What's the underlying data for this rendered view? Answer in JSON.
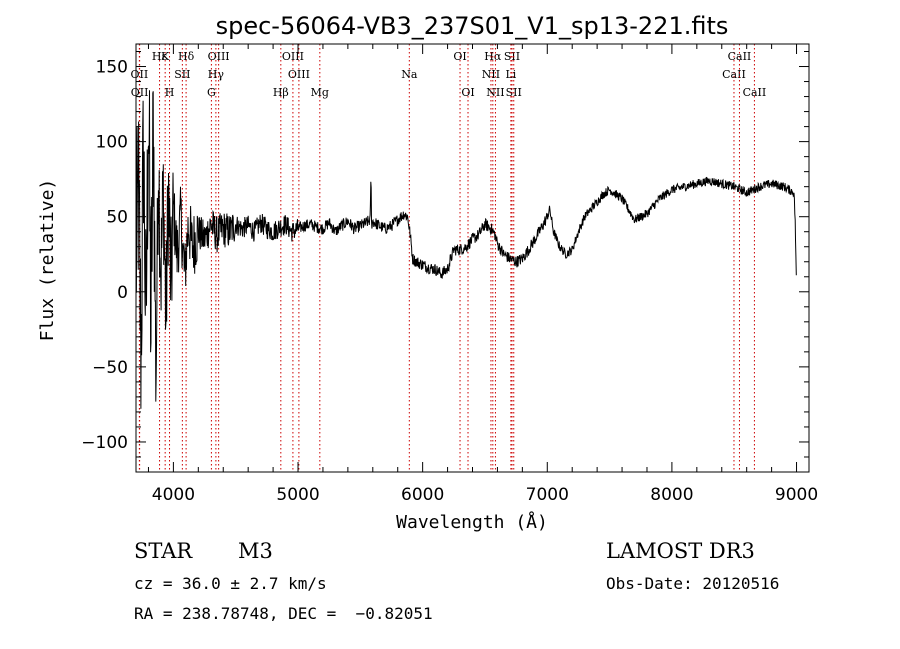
{
  "chart_data": {
    "type": "line",
    "title": "spec-56064-VB3_237S01_V1_sp13-221.fits",
    "xlabel": "Wavelength (Å)",
    "ylabel": "Flux (relative)",
    "xlim": [
      3700,
      9100
    ],
    "ylim": [
      -120,
      165
    ],
    "xticks": [
      4000,
      5000,
      6000,
      7000,
      8000,
      9000
    ],
    "yticks": [
      -100,
      -50,
      0,
      50,
      100,
      150
    ],
    "xtick_labels": [
      "4000",
      "5000",
      "6000",
      "7000",
      "8000",
      "9000"
    ],
    "ytick_labels": [
      "−100",
      "−50",
      "0",
      "50",
      "100",
      "150"
    ],
    "series": [
      {
        "name": "flux",
        "x": [
          3700,
          3720,
          3740,
          3760,
          3780,
          3800,
          3820,
          3840,
          3860,
          3880,
          3900,
          3920,
          3940,
          3960,
          3980,
          4000,
          4030,
          4060,
          4090,
          4120,
          4150,
          4200,
          4250,
          4300,
          4350,
          4400,
          4450,
          4500,
          4550,
          4600,
          4650,
          4700,
          4750,
          4800,
          4850,
          4900,
          4950,
          5000,
          5050,
          5100,
          5150,
          5200,
          5250,
          5300,
          5350,
          5400,
          5450,
          5500,
          5550,
          5580,
          5585,
          5590,
          5600,
          5650,
          5700,
          5750,
          5800,
          5850,
          5880,
          5900,
          5920,
          5950,
          6000,
          6050,
          6100,
          6150,
          6200,
          6250,
          6300,
          6350,
          6400,
          6450,
          6500,
          6550,
          6580,
          6600,
          6650,
          6700,
          6750,
          6800,
          6850,
          6900,
          6950,
          7000,
          7020,
          7050,
          7100,
          7150,
          7200,
          7250,
          7300,
          7350,
          7400,
          7450,
          7500,
          7550,
          7600,
          7650,
          7700,
          7750,
          7800,
          7900,
          8000,
          8100,
          8200,
          8300,
          8400,
          8500,
          8600,
          8700,
          8800,
          8900,
          8980,
          8990,
          9000
        ],
        "values": [
          20,
          65,
          -40,
          100,
          -30,
          130,
          -25,
          120,
          -60,
          90,
          10,
          70,
          -20,
          70,
          0,
          55,
          25,
          50,
          10,
          45,
          30,
          40,
          35,
          45,
          38,
          42,
          40,
          45,
          42,
          44,
          40,
          46,
          42,
          40,
          43,
          45,
          40,
          42,
          44,
          45,
          43,
          42,
          46,
          40,
          44,
          47,
          42,
          44,
          46,
          48,
          82,
          45,
          47,
          44,
          42,
          44,
          48,
          52,
          50,
          38,
          22,
          20,
          18,
          16,
          15,
          12,
          15,
          28,
          28,
          30,
          35,
          38,
          45,
          42,
          38,
          32,
          25,
          22,
          20,
          22,
          28,
          35,
          42,
          50,
          55,
          40,
          30,
          25,
          28,
          40,
          50,
          55,
          60,
          65,
          68,
          65,
          62,
          55,
          48,
          50,
          52,
          62,
          68,
          70,
          72,
          74,
          72,
          70,
          66,
          70,
          72,
          70,
          66,
          45,
          0
        ]
      }
    ],
    "emission_lines": [
      {
        "label": "Hδ",
        "x": 4102,
        "row": 1
      },
      {
        "label": "Hγ",
        "x": 4341,
        "row": 2
      },
      {
        "label": "Hβ",
        "x": 4862,
        "row": 3
      },
      {
        "label": "OIII",
        "x": 4363,
        "row": 1
      },
      {
        "label": "OIII",
        "x": 4959,
        "row": 1
      },
      {
        "label": "OIII",
        "x": 5007,
        "row": 2
      },
      {
        "label": "G",
        "x": 4305,
        "row": 3
      },
      {
        "label": "Mg",
        "x": 5175,
        "row": 3
      },
      {
        "label": "Na",
        "x": 5893,
        "row": 2
      },
      {
        "label": "OI",
        "x": 6300,
        "row": 1
      },
      {
        "label": "OI",
        "x": 6364,
        "row": 3
      },
      {
        "label": "Hα",
        "x": 6563,
        "row": 1
      },
      {
        "label": "NII",
        "x": 6548,
        "row": 2
      },
      {
        "label": "NII",
        "x": 6584,
        "row": 3
      },
      {
        "label": "SII",
        "x": 6717,
        "row": 1
      },
      {
        "label": "SII",
        "x": 6731,
        "row": 3
      },
      {
        "label": "Li",
        "x": 6708,
        "row": 2
      },
      {
        "label": "CaII",
        "x": 8498,
        "row": 2
      },
      {
        "label": "CaII",
        "x": 8542,
        "row": 1
      },
      {
        "label": "CaII",
        "x": 8662,
        "row": 3
      },
      {
        "label": "Hε",
        "x": 3889,
        "row": 1
      },
      {
        "label": "K",
        "x": 3934,
        "row": 1
      },
      {
        "label": "H",
        "x": 3969,
        "row": 3
      },
      {
        "label": "SII",
        "x": 4072,
        "row": 2
      },
      {
        "label": "OII",
        "x": 3727,
        "row": 2
      },
      {
        "label": "OII",
        "x": 3729,
        "row": 3
      }
    ]
  },
  "info": {
    "object_class": "STAR",
    "subclass": "M3",
    "survey": "LAMOST DR3",
    "redshift": "cz = 36.0 ± 2.7 km/s",
    "obs_date": "Obs-Date: 20120516",
    "coords": "RA = 238.78748, DEC =  −0.82051"
  },
  "colors": {
    "line_marker": "#cc0000",
    "spectrum": "#000000"
  }
}
